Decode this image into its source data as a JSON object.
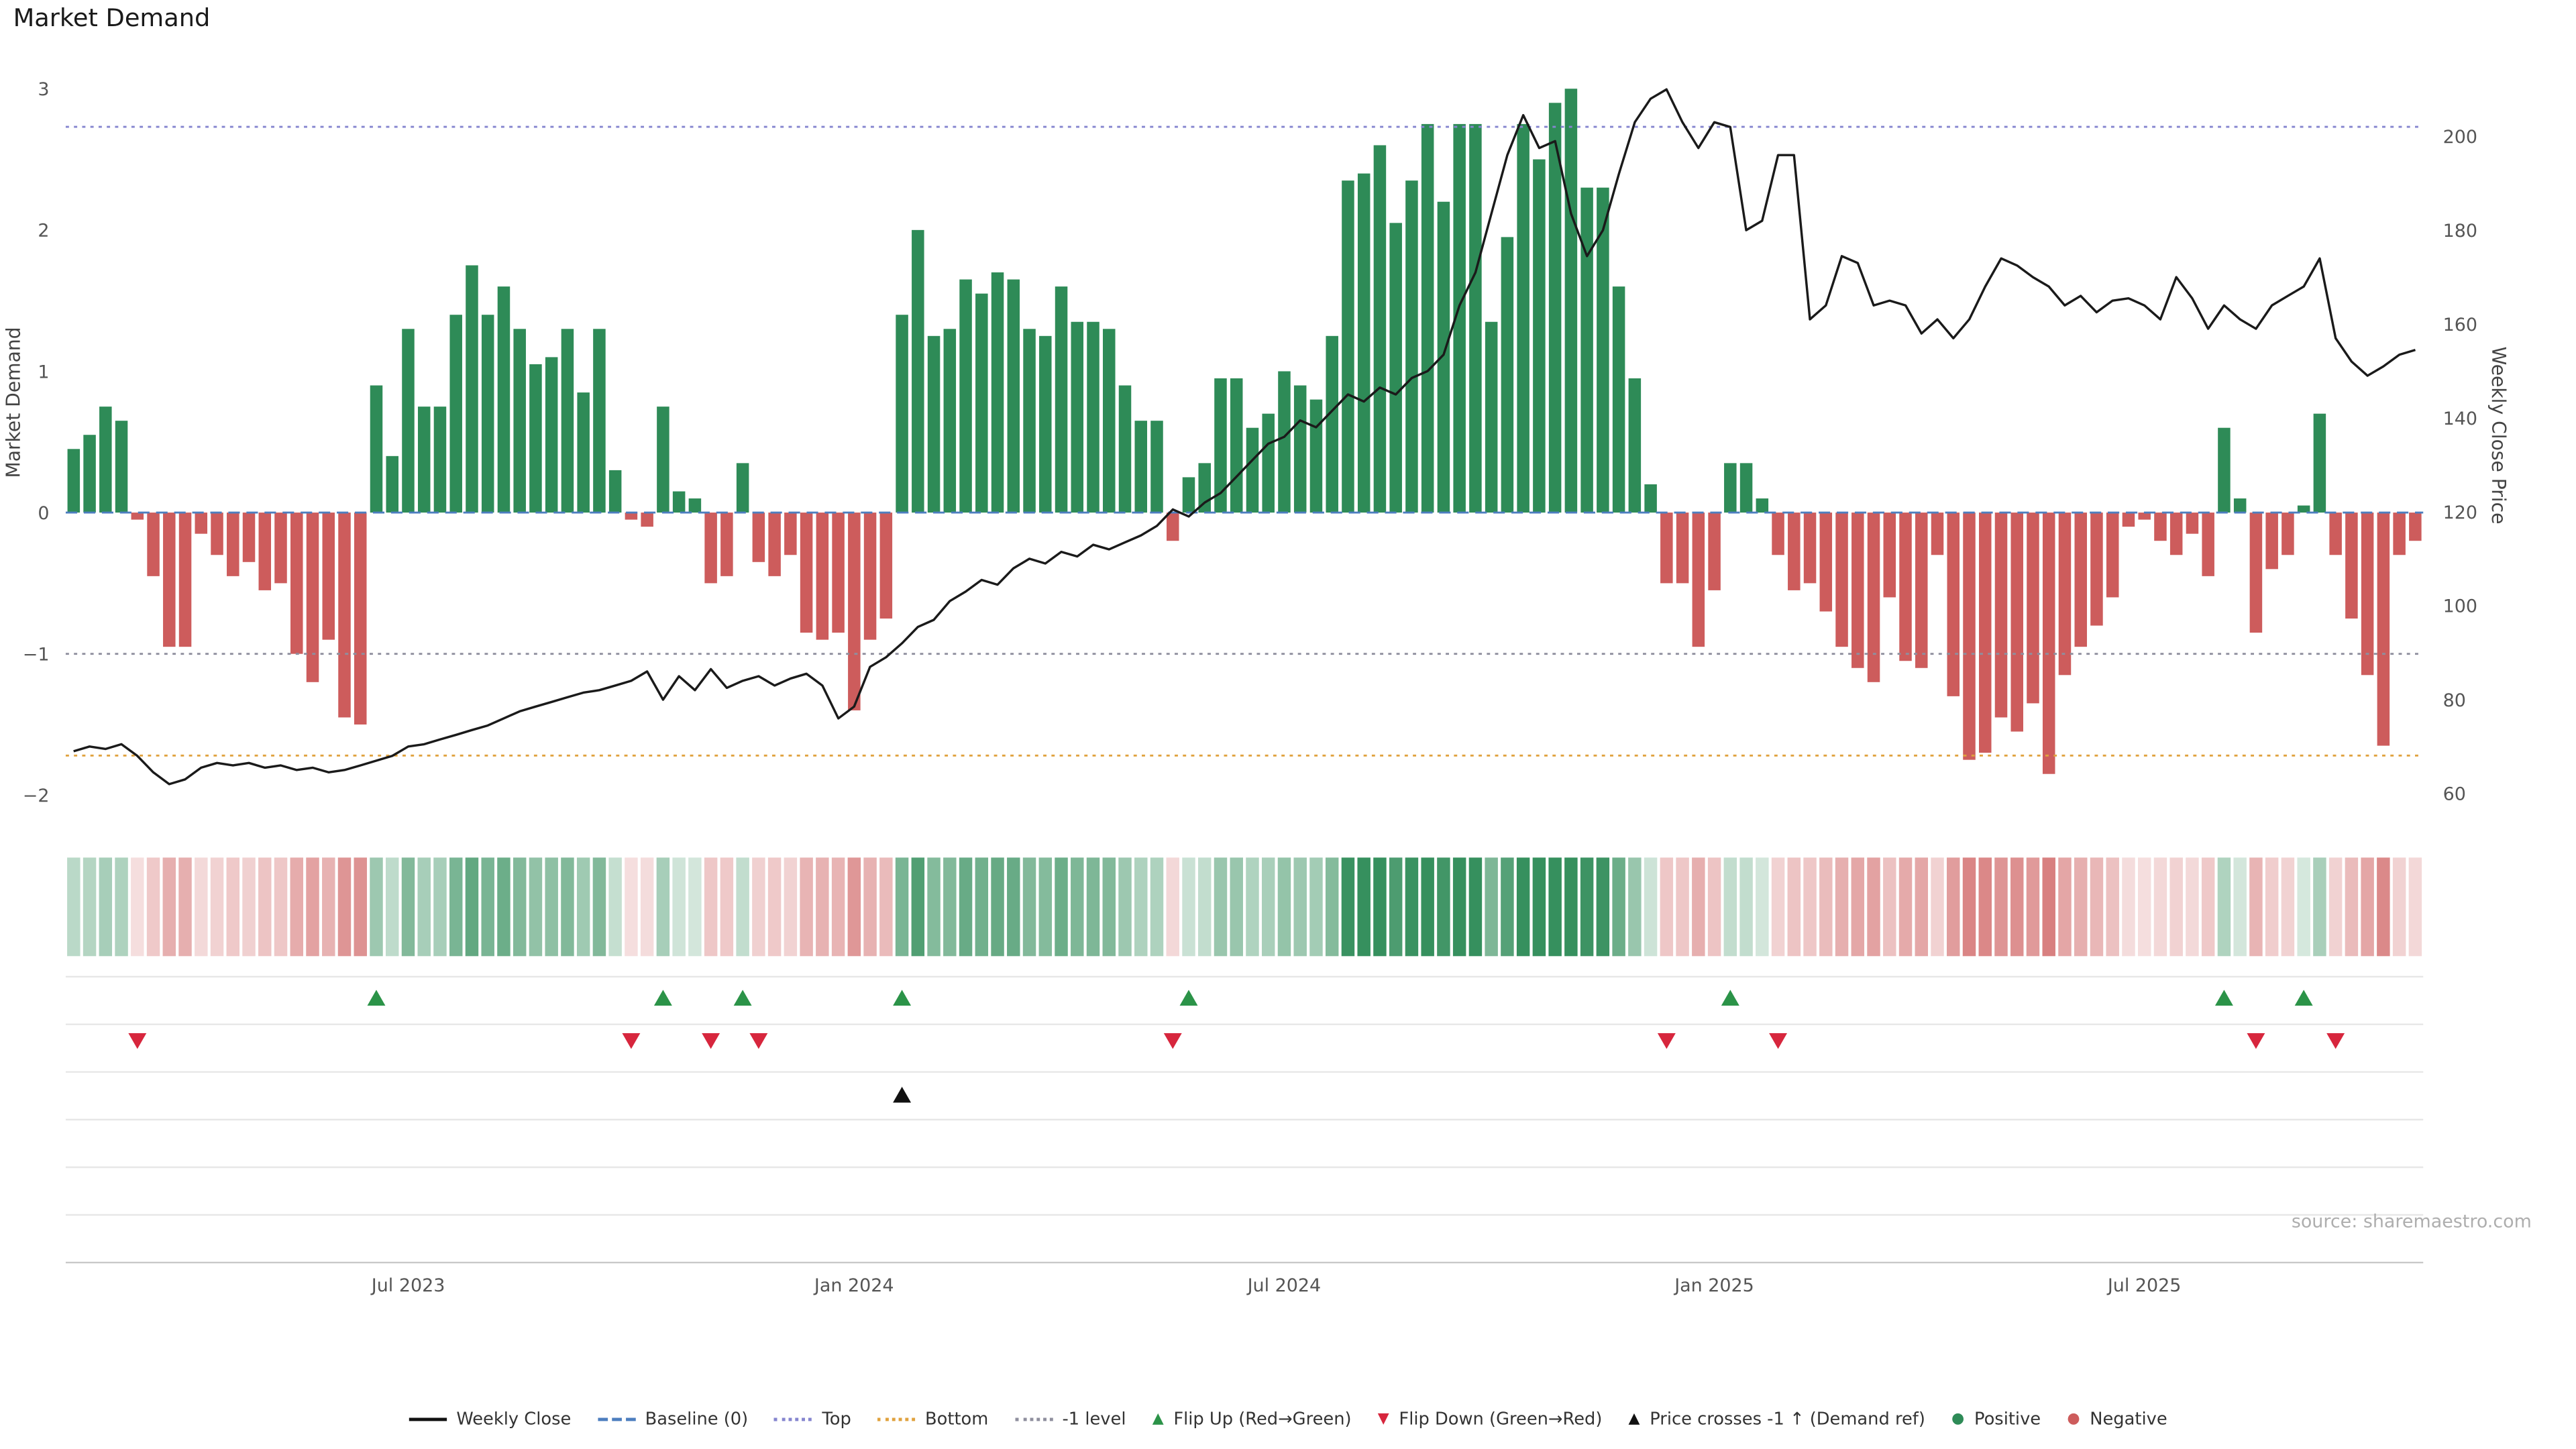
{
  "title": "Market Demand",
  "source": "source: sharemaestro.com",
  "axes": {
    "left": {
      "label": "Market Demand",
      "ticks": [
        -2,
        -1,
        0,
        1,
        2,
        3
      ]
    },
    "right": {
      "label": "Weekly Close Price",
      "ticks": [
        60,
        80,
        100,
        120,
        140,
        160,
        180,
        200
      ]
    }
  },
  "colors": {
    "positive": "#2e8b57",
    "negative": "#cd5c5c",
    "line": "#1a1a1a",
    "baseline": "#4d7ebf",
    "top": "#8585cf",
    "bottom": "#e0a23e",
    "minus1": "#8f8f9e",
    "positive_bright": "#2b9348",
    "negative_bright": "#d7263d"
  },
  "legend": [
    {
      "label": "Weekly Close",
      "type": "solid",
      "color": "#111111"
    },
    {
      "label": "Baseline (0)",
      "type": "dashed",
      "color": "#4d7ebf"
    },
    {
      "label": "Top",
      "type": "dotted",
      "color": "#8585cf"
    },
    {
      "label": "Bottom",
      "type": "dotted",
      "color": "#e0a23e"
    },
    {
      "label": "-1 level",
      "type": "dotted",
      "color": "#8f8f9e"
    },
    {
      "label": "Flip Up (Red→Green)",
      "type": "triangle-up",
      "color": "#2b9348"
    },
    {
      "label": "Flip Down (Green→Red)",
      "type": "triangle-down",
      "color": "#d7263d"
    },
    {
      "label": "Price crosses -1 ↑ (Demand ref)",
      "type": "triangle-up",
      "color": "#111111"
    },
    {
      "label": "Positive",
      "type": "dot",
      "color": "#2e8b57"
    },
    {
      "label": "Negative",
      "type": "dot",
      "color": "#cd5c5c"
    }
  ],
  "chart_data": {
    "type": "bar",
    "subtype": "bar+line combo with heatmap strip and event markers",
    "title": "Market Demand",
    "ylabel": "Market Demand",
    "ylabel_right": "Weekly Close Price",
    "ylim_left": [
      -2.3,
      3.1
    ],
    "ylim_right": [
      50,
      213
    ],
    "x_start": "2023-02-06",
    "x_freq": "weekly",
    "x_ticks": [
      {
        "index": 21,
        "label": "Jul 2023"
      },
      {
        "index": 49,
        "label": "Jan 2024"
      },
      {
        "index": 76,
        "label": "Jul 2024"
      },
      {
        "index": 103,
        "label": "Jan 2025"
      },
      {
        "index": 130,
        "label": "Jul 2025"
      }
    ],
    "reference_lines": {
      "baseline": 0,
      "top": 2.73,
      "bottom": -1.72,
      "minus1": -1.0
    },
    "series": [
      {
        "name": "Market Demand",
        "type": "bar",
        "axis": "left",
        "values": [
          0.45,
          0.55,
          0.75,
          0.65,
          -0.05,
          -0.45,
          -0.95,
          -0.95,
          -0.15,
          -0.3,
          -0.45,
          -0.35,
          -0.55,
          -0.5,
          -1.0,
          -1.2,
          -0.9,
          -1.45,
          -1.5,
          0.9,
          0.4,
          1.3,
          0.75,
          0.75,
          1.4,
          1.75,
          1.4,
          1.6,
          1.3,
          1.05,
          1.1,
          1.3,
          0.85,
          1.3,
          0.3,
          -0.05,
          -0.1,
          0.75,
          0.15,
          0.1,
          -0.5,
          -0.45,
          0.35,
          -0.35,
          -0.45,
          -0.3,
          -0.85,
          -0.9,
          -0.85,
          -1.4,
          -0.9,
          -0.75,
          1.4,
          2.0,
          1.25,
          1.3,
          1.65,
          1.55,
          1.7,
          1.65,
          1.3,
          1.25,
          1.6,
          1.35,
          1.35,
          1.3,
          0.9,
          0.65,
          0.65,
          -0.2,
          0.25,
          0.35,
          0.95,
          0.95,
          0.6,
          0.7,
          1.0,
          0.9,
          0.8,
          1.25,
          2.35,
          2.4,
          2.6,
          2.05,
          2.35,
          2.75,
          2.2,
          2.75,
          2.75,
          1.35,
          1.95,
          2.75,
          2.5,
          2.9,
          3.0,
          2.3,
          2.3,
          1.6,
          0.95,
          0.2,
          -0.5,
          -0.5,
          -0.95,
          -0.55,
          0.35,
          0.35,
          0.1,
          -0.3,
          -0.55,
          -0.5,
          -0.7,
          -0.95,
          -1.1,
          -1.2,
          -0.6,
          -1.05,
          -1.1,
          -0.3,
          -1.3,
          -1.75,
          -1.7,
          -1.45,
          -1.55,
          -1.35,
          -1.85,
          -1.15,
          -0.95,
          -0.8,
          -0.6,
          -0.1,
          -0.05,
          -0.2,
          -0.3,
          -0.15,
          -0.45,
          0.6,
          0.1,
          -0.85,
          -0.4,
          -0.3,
          0.05,
          0.7,
          -0.3,
          -0.75,
          -1.15,
          -1.65,
          -0.3,
          -0.2
        ]
      },
      {
        "name": "Weekly Close",
        "type": "line",
        "axis": "right",
        "values": [
          69,
          70,
          69.5,
          70.5,
          68,
          64.5,
          62,
          63,
          65.5,
          66.5,
          66,
          66.5,
          65.5,
          66,
          65,
          65.5,
          64.5,
          65,
          66,
          67,
          68,
          70,
          70.5,
          71.5,
          72.5,
          73.5,
          74.5,
          76,
          77.5,
          78.5,
          79.5,
          80.5,
          81.5,
          82,
          83,
          84,
          86,
          80,
          85,
          82,
          86.5,
          82.5,
          84,
          85,
          83,
          84.5,
          85.5,
          83,
          76,
          78.5,
          87,
          89,
          92,
          95.5,
          97,
          101,
          103,
          105.5,
          104.5,
          108,
          110,
          109,
          111.5,
          110.5,
          113,
          112,
          113.5,
          115,
          117,
          120.5,
          119,
          122,
          124,
          127.5,
          131,
          134.5,
          136,
          139.5,
          138,
          141.5,
          145,
          143.5,
          146.5,
          145,
          148.5,
          150,
          153.5,
          164,
          171,
          183.5,
          196,
          204.5,
          197.5,
          199,
          183.5,
          174.5,
          180,
          192,
          203,
          208,
          210,
          203,
          197.5,
          203,
          202,
          180,
          182,
          196,
          196,
          161,
          164,
          174.5,
          173,
          164,
          165,
          164,
          158,
          161,
          157,
          161,
          168,
          174,
          172.5,
          170,
          168,
          164,
          166,
          162.5,
          165,
          165.5,
          164,
          161,
          170,
          165.5,
          159,
          164,
          161,
          159,
          164,
          166,
          168,
          174,
          157,
          152,
          149,
          151,
          153.5,
          154.5
        ]
      }
    ],
    "heatmap_strip": "same values as Market Demand bars; green positive / red negative, opacity scales with magnitude",
    "markers": {
      "flip_up_indices": [
        19,
        37,
        42,
        52,
        70,
        104,
        135,
        140
      ],
      "flip_down_indices": [
        4,
        35,
        40,
        43,
        69,
        100,
        107,
        137,
        142
      ],
      "price_cross_minus1_indices": [
        52
      ]
    },
    "legend_position": "bottom center",
    "grid": "horizontal gridlines in lower marker panel only"
  }
}
